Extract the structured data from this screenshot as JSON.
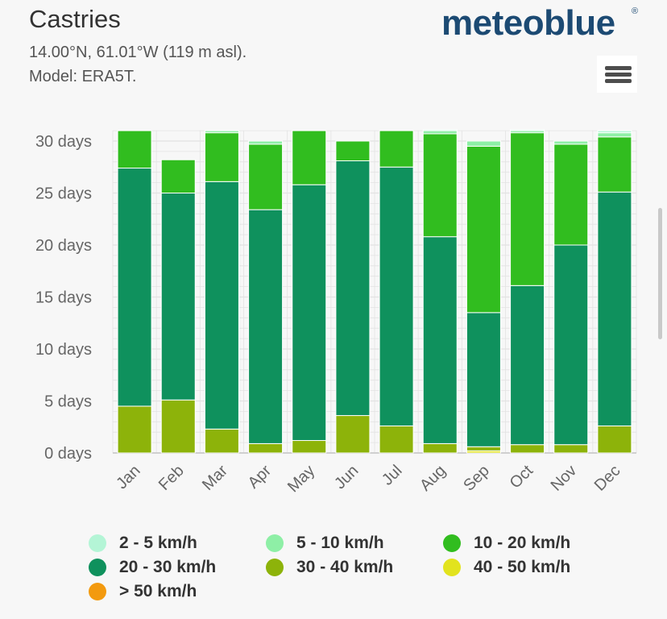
{
  "header": {
    "title": "Castries",
    "coords": "14.00°N, 61.01°W (119 m asl).",
    "model": "Model: ERA5T."
  },
  "logo": {
    "text": "meteoblue",
    "reg": "®"
  },
  "colors": {
    "background": "#f7f7f7",
    "logo": "#1c4a73",
    "grid": "#e3e3e3",
    "axis_text": "#666666"
  },
  "chart_data": {
    "type": "bar",
    "stacked": true,
    "title": "",
    "xlabel": "",
    "ylabel": "",
    "ylim": [
      0,
      31
    ],
    "yticks": [
      0,
      5,
      10,
      15,
      20,
      25,
      30
    ],
    "ytick_labels": [
      "0 days",
      "5 days",
      "10 days",
      "15 days",
      "20 days",
      "25 days",
      "30 days"
    ],
    "categories": [
      "Jan",
      "Feb",
      "Mar",
      "Apr",
      "May",
      "Jun",
      "Jul",
      "Aug",
      "Sep",
      "Oct",
      "Nov",
      "Dec"
    ],
    "series": [
      {
        "name": "> 50 km/h",
        "color": "#f39a0f",
        "values": [
          0,
          0,
          0,
          0,
          0,
          0,
          0,
          0,
          0,
          0,
          0,
          0
        ]
      },
      {
        "name": "40 - 50 km/h",
        "color": "#e2e31e",
        "values": [
          0,
          0,
          0,
          0,
          0,
          0,
          0,
          0,
          0.2,
          0,
          0,
          0
        ]
      },
      {
        "name": "30 - 40 km/h",
        "color": "#8db30a",
        "values": [
          4.5,
          5.1,
          2.3,
          0.9,
          1.2,
          3.6,
          2.6,
          0.9,
          0.4,
          0.8,
          0.8,
          2.6
        ]
      },
      {
        "name": "20 - 30 km/h",
        "color": "#0f915d",
        "values": [
          22.9,
          19.9,
          23.8,
          22.5,
          24.6,
          24.5,
          24.9,
          19.9,
          12.9,
          15.3,
          19.2,
          22.5
        ]
      },
      {
        "name": "10 - 20 km/h",
        "color": "#31bd1f",
        "values": [
          3.6,
          3.2,
          4.7,
          6.3,
          5.2,
          1.9,
          3.5,
          9.9,
          16.0,
          14.7,
          9.7,
          5.3
        ]
      },
      {
        "name": "5 - 10 km/h",
        "color": "#8eefa6",
        "values": [
          0,
          0,
          0.2,
          0.3,
          0,
          0,
          0,
          0.3,
          0.5,
          0.2,
          0.3,
          0.4
        ]
      },
      {
        "name": "2 - 5 km/h",
        "color": "#b4f5d6",
        "values": [
          0,
          0,
          0,
          0,
          0,
          0,
          0,
          0.1,
          0,
          0.1,
          0,
          0.2
        ]
      }
    ],
    "legend_order": [
      "2 - 5 km/h",
      "5 - 10 km/h",
      "10 - 20 km/h",
      "20 - 30 km/h",
      "30 - 40 km/h",
      "40 - 50 km/h",
      "> 50 km/h"
    ],
    "legend_position": "bottom"
  }
}
